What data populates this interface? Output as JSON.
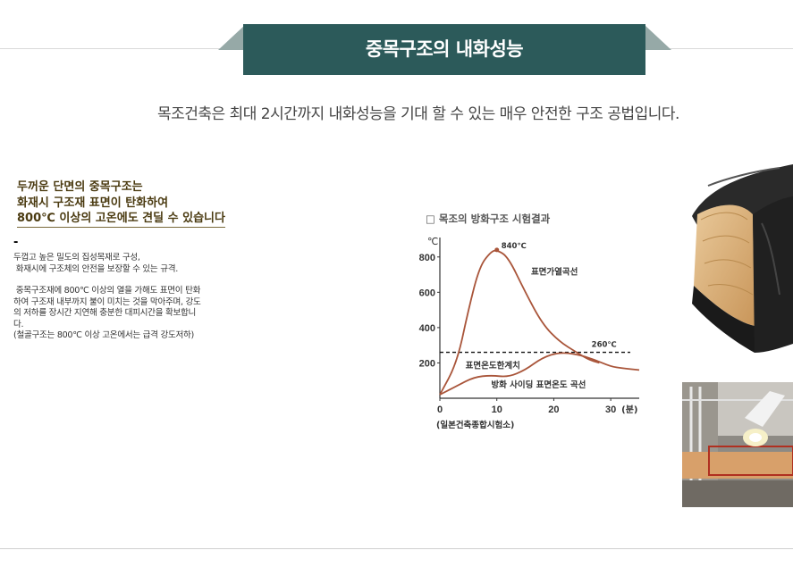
{
  "header": {
    "title": "중목구조의 내화성능",
    "banner_color": "#2c5a5a"
  },
  "subtitle": "목조건축은 최대 2시간까지 내화성능을 기대 할 수 있는 매우 안전한 구조 공법입니다.",
  "highlight": {
    "lines": [
      "두꺼운 단면의 중목구조는",
      "화재시 구조재 표면이 탄화하여",
      "800℃ 이상의 고온에도 견딜 수 있습니다"
    ],
    "color": "#4a3a10"
  },
  "dash": "-",
  "body": {
    "para1_line1": "두껍고 높은 밀도의 집성목재로 구성,",
    "para1_line2": " 화재시에 구조체의 안전을 보장할 수 있는 규격.",
    "para2_line1": " 중목구조재에 800℃ 이상의 열을 가해도 표면이 탄화",
    "para2_line2": "하여 구조재 내부까지 불이 미치는 것을 막아주며, 강도",
    "para2_line3": "의 저하를 장시간 지연해 충분한 대피시간을 확보합니",
    "para2_line4": "다.",
    "para2_line5": "(철골구조는 800℃ 이상 고온에서는 급격 강도저하)"
  },
  "chart_title": "□ 목조의 방화구조 시험결과",
  "chart_data": {
    "type": "line",
    "xlabel": "(분)",
    "ylabel": "℃",
    "xlim": [
      0,
      35
    ],
    "ylim": [
      0,
      900
    ],
    "x_ticks": [
      "0",
      "10",
      "20",
      "30"
    ],
    "y_ticks": [
      "200",
      "400",
      "600",
      "800"
    ],
    "series": [
      {
        "name": "표면가열곡선",
        "x": [
          0,
          3,
          5,
          7,
          9,
          10,
          12,
          15,
          18,
          21,
          24,
          26,
          28
        ],
        "y": [
          20,
          200,
          500,
          750,
          830,
          840,
          800,
          600,
          420,
          320,
          260,
          220,
          200
        ]
      },
      {
        "name": "방화 사이딩 표면온도 곡선",
        "x": [
          0,
          3,
          6,
          9,
          12,
          15,
          18,
          21,
          24,
          27,
          30,
          32,
          35
        ],
        "y": [
          20,
          70,
          120,
          130,
          120,
          160,
          230,
          260,
          250,
          220,
          180,
          170,
          160
        ]
      }
    ],
    "threshold": {
      "name": "표면온도한계치",
      "y": 260
    },
    "annotations": {
      "peak": "840℃",
      "limit_value": "260℃"
    },
    "source": "(일본건축종합시험소)",
    "line_color": "#a9553a"
  }
}
